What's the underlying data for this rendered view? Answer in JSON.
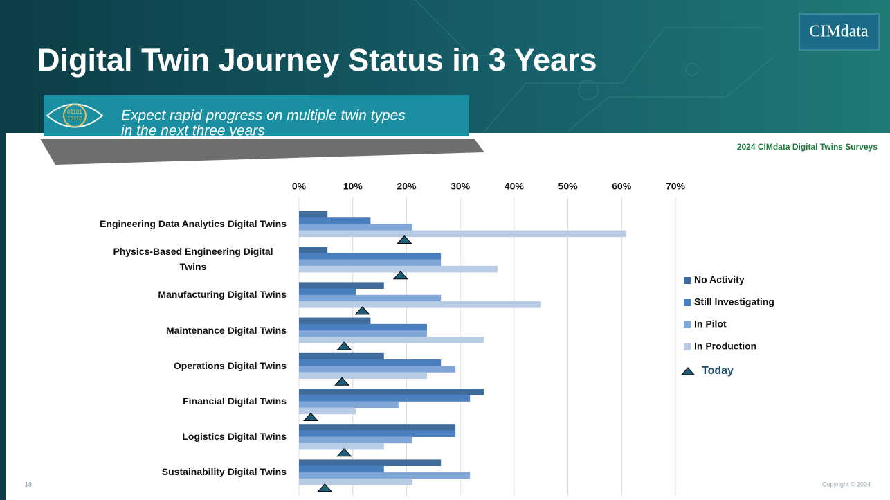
{
  "slide": {
    "title": "Digital Twin Journey Status in 3 Years",
    "logo": "CIMdata",
    "callout_lines": [
      "Expect rapid progress on multiple twin types",
      "in the next three years"
    ],
    "icon_lines": [
      "01101",
      "10110"
    ],
    "source": "2024 CIMdata Digital Twins Surveys",
    "page_number": "18",
    "copyright": "Copyright © 2024"
  },
  "chart_data": {
    "type": "hbar",
    "categories": [
      "Engineering Data Analytics Digital Twins",
      "Physics-Based Engineering Digital Twins",
      "Manufacturing Digital Twins",
      "Maintenance Digital Twins",
      "Operations Digital Twins",
      "Financial Digital Twins",
      "Logistics Digital Twins",
      "Sustainability Digital Twins"
    ],
    "series": [
      {
        "name": "No Activity",
        "color": "#3f6c9c",
        "values": [
          5.3,
          5.3,
          15.8,
          13.3,
          15.8,
          34.4,
          29.1,
          26.4
        ]
      },
      {
        "name": "Still Investigating",
        "color": "#4a7fbf",
        "values": [
          13.3,
          26.4,
          10.6,
          23.8,
          26.4,
          31.8,
          29.1,
          15.8
        ]
      },
      {
        "name": "In Pilot",
        "color": "#7fa6d6",
        "values": [
          21.1,
          26.4,
          26.4,
          23.8,
          29.1,
          18.5,
          21.1,
          31.8
        ]
      },
      {
        "name": "In Production",
        "color": "#b8cce6",
        "values": [
          60.8,
          36.9,
          44.9,
          34.4,
          23.8,
          10.6,
          15.8,
          21.1
        ]
      }
    ],
    "markers": {
      "name": "Today",
      "color": "#1f5f78",
      "shape": "triangle",
      "values": [
        19.6,
        18.9,
        11.8,
        8.4,
        8.0,
        2.2,
        8.4,
        4.8
      ]
    },
    "xlim": [
      0,
      70
    ],
    "xticks": [
      {
        "value": 0,
        "label": "0%"
      },
      {
        "value": 10,
        "label": "10%"
      },
      {
        "value": 20,
        "label": "20%"
      },
      {
        "value": 30,
        "label": "30%"
      },
      {
        "value": 40,
        "label": "40%"
      },
      {
        "value": 50,
        "label": "50%"
      },
      {
        "value": 60,
        "label": "60%"
      },
      {
        "value": 70,
        "label": "70%"
      }
    ],
    "grid": true,
    "legend": "right"
  }
}
